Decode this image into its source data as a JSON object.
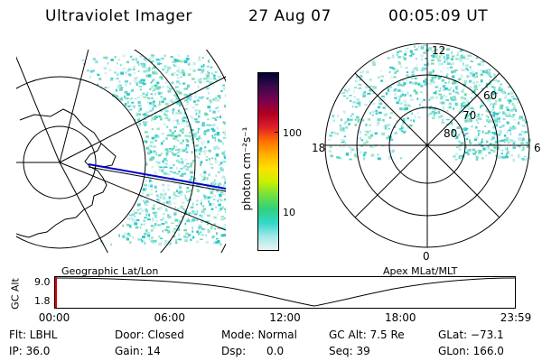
{
  "header": {
    "instrument": "Ultraviolet Imager",
    "date": "27 Aug 07",
    "time": "00:05:09 UT"
  },
  "left_panel": {
    "caption": "Geographic Lat/Lon"
  },
  "right_panel": {
    "caption": "Apex MLat/MLT",
    "mlt_labels": [
      "12",
      "18",
      "6",
      "0"
    ],
    "lat_labels": [
      "60",
      "70",
      "80"
    ]
  },
  "colorbar": {
    "unit_label": "photon cm⁻²s⁻¹",
    "tick_labels": [
      "100",
      "10"
    ],
    "colors": [
      "#000033",
      "#3a0a4a",
      "#7a0050",
      "#b00020",
      "#e0202a",
      "#ff7000",
      "#ffb000",
      "#ffe000",
      "#c8f000",
      "#70e040",
      "#30d080",
      "#30d8c8",
      "#a0e8e8",
      "#e8f4f4"
    ]
  },
  "altitude_plot": {
    "ylabel": "GC Alt",
    "y_ticks": [
      "9.0",
      "1.8"
    ],
    "x_ticks": [
      "00:00",
      "06:00",
      "12:00",
      "18:00",
      "23:59"
    ]
  },
  "info": {
    "row1": [
      "Flt: LBHL",
      "Door: Closed",
      "Mode: Normal",
      "GC Alt: 7.5 Re",
      "GLat: −73.1"
    ],
    "row2": [
      "IP: 36.0",
      "Gain: 14",
      "Dsp:      0.0",
      "Seq: 39",
      "GLon: 166.0"
    ]
  }
}
